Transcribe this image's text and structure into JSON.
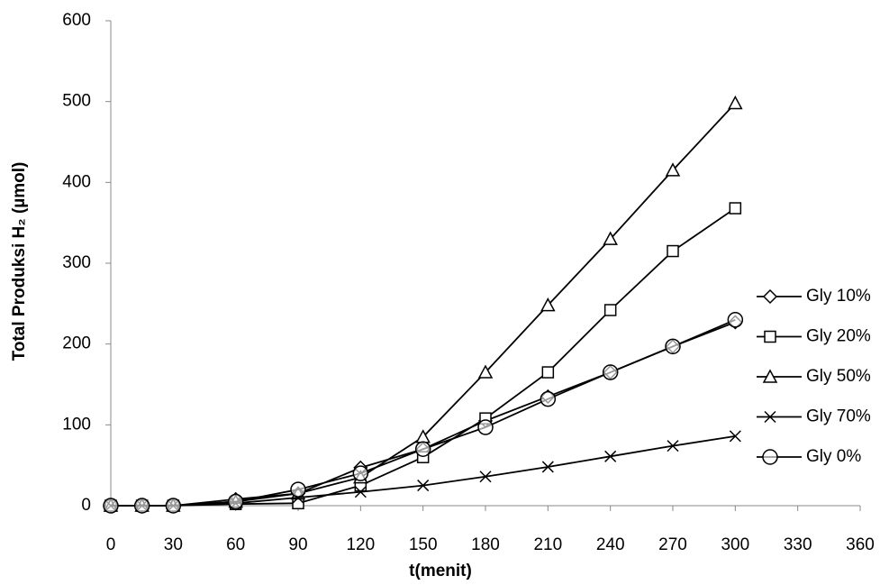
{
  "chart_data": {
    "type": "line",
    "x_label": "t(menit)",
    "y_label": "Total Produksi H₂ (µmol)",
    "x": [
      0,
      15,
      30,
      60,
      90,
      120,
      150,
      180,
      210,
      240,
      270,
      300
    ],
    "series": [
      {
        "name": "Gly 10%",
        "color": "#000000",
        "marker": "diamond",
        "values": [
          0,
          0,
          0,
          8,
          15,
          47,
          70,
          105,
          135,
          165,
          197,
          227
        ]
      },
      {
        "name": "Gly 20%",
        "color": "#000000",
        "marker": "square",
        "values": [
          0,
          0,
          0,
          2,
          3,
          25,
          60,
          108,
          165,
          242,
          315,
          368
        ]
      },
      {
        "name": "Gly 50%",
        "color": "#000000",
        "marker": "triangle",
        "values": [
          0,
          0,
          0,
          5,
          15,
          35,
          85,
          165,
          248,
          330,
          415,
          498
        ]
      },
      {
        "name": "Gly 70%",
        "color": "#000000",
        "marker": "x",
        "values": [
          0,
          0,
          0,
          3,
          10,
          17,
          25,
          36,
          48,
          61,
          74,
          86
        ]
      },
      {
        "name": "Gly 0%",
        "color": "#000000",
        "marker": "circle",
        "values": [
          0,
          0,
          0,
          5,
          20,
          40,
          70,
          97,
          132,
          165,
          197,
          230
        ]
      }
    ],
    "xlim": [
      0,
      360
    ],
    "xticks": [
      0,
      30,
      60,
      90,
      120,
      150,
      180,
      210,
      240,
      270,
      300,
      330,
      360
    ],
    "ylim": [
      0,
      600
    ],
    "yticks": [
      0,
      100,
      200,
      300,
      400,
      500,
      600
    ],
    "grid": false,
    "legend": "right"
  }
}
